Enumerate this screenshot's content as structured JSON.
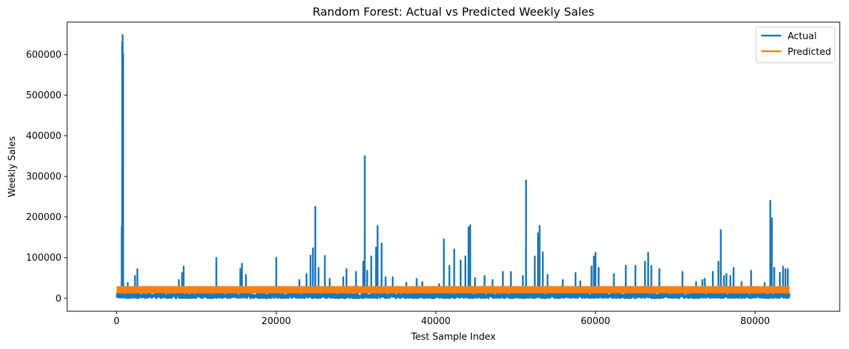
{
  "chart_data": {
    "type": "line",
    "title": "Random Forest: Actual vs Predicted Weekly Sales",
    "xlabel": "Test Sample Index",
    "ylabel": "Weekly Sales",
    "xlim": [
      -6200,
      90600
    ],
    "ylim": [
      -32000,
      680000
    ],
    "x_ticks": [
      0,
      20000,
      40000,
      60000,
      80000
    ],
    "y_ticks": [
      0,
      100000,
      200000,
      300000,
      400000,
      500000,
      600000
    ],
    "legend_position": "top-right",
    "grid": false,
    "series": [
      {
        "name": "Actual",
        "color": "#1f77b4",
        "baseline_range": [
          0,
          12000
        ],
        "x_end": 84300,
        "spikes": [
          [
            640,
            175000
          ],
          [
            700,
            630000
          ],
          [
            760,
            648000
          ],
          [
            820,
            600000
          ],
          [
            1400,
            38000
          ],
          [
            2300,
            55000
          ],
          [
            2600,
            72000
          ],
          [
            3900,
            28000
          ],
          [
            7800,
            45000
          ],
          [
            8200,
            62000
          ],
          [
            8400,
            78000
          ],
          [
            12500,
            99000
          ],
          [
            15500,
            72000
          ],
          [
            15700,
            85000
          ],
          [
            16200,
            58000
          ],
          [
            20000,
            100000
          ],
          [
            22900,
            45000
          ],
          [
            23800,
            60000
          ],
          [
            24300,
            105000
          ],
          [
            24600,
            123000
          ],
          [
            24900,
            225000
          ],
          [
            25300,
            75000
          ],
          [
            26100,
            104000
          ],
          [
            26700,
            48000
          ],
          [
            28400,
            52000
          ],
          [
            28800,
            72000
          ],
          [
            30000,
            65000
          ],
          [
            30900,
            90000
          ],
          [
            31100,
            350000
          ],
          [
            31400,
            68000
          ],
          [
            31900,
            103000
          ],
          [
            32500,
            125000
          ],
          [
            32700,
            178000
          ],
          [
            33200,
            135000
          ],
          [
            33700,
            52000
          ],
          [
            34600,
            52000
          ],
          [
            36300,
            38000
          ],
          [
            37600,
            48000
          ],
          [
            38300,
            40000
          ],
          [
            40400,
            35000
          ],
          [
            41000,
            145000
          ],
          [
            41700,
            80000
          ],
          [
            42300,
            120000
          ],
          [
            43100,
            93000
          ],
          [
            43700,
            103000
          ],
          [
            44100,
            175000
          ],
          [
            44300,
            180000
          ],
          [
            44900,
            50000
          ],
          [
            46100,
            55000
          ],
          [
            47100,
            45000
          ],
          [
            48400,
            65000
          ],
          [
            49400,
            65000
          ],
          [
            50900,
            55000
          ],
          [
            51300,
            290000
          ],
          [
            52400,
            103000
          ],
          [
            52800,
            160000
          ],
          [
            53000,
            178000
          ],
          [
            53400,
            113000
          ],
          [
            54000,
            58000
          ],
          [
            55900,
            45000
          ],
          [
            57500,
            62000
          ],
          [
            58100,
            42000
          ],
          [
            59500,
            78000
          ],
          [
            59800,
            103000
          ],
          [
            60000,
            112000
          ],
          [
            60400,
            75000
          ],
          [
            62300,
            60000
          ],
          [
            63800,
            80000
          ],
          [
            65000,
            80000
          ],
          [
            66200,
            90000
          ],
          [
            66600,
            112000
          ],
          [
            67000,
            80000
          ],
          [
            68000,
            72000
          ],
          [
            70900,
            65000
          ],
          [
            72600,
            40000
          ],
          [
            73400,
            45000
          ],
          [
            73700,
            48000
          ],
          [
            74700,
            65000
          ],
          [
            75400,
            90000
          ],
          [
            75700,
            168000
          ],
          [
            76100,
            55000
          ],
          [
            76400,
            60000
          ],
          [
            76900,
            55000
          ],
          [
            77300,
            75000
          ],
          [
            78300,
            40000
          ],
          [
            79500,
            68000
          ],
          [
            81200,
            38000
          ],
          [
            81900,
            240000
          ],
          [
            82100,
            197000
          ],
          [
            82400,
            75000
          ],
          [
            83100,
            63000
          ],
          [
            83500,
            78000
          ],
          [
            83800,
            72000
          ],
          [
            84100,
            72000
          ]
        ]
      },
      {
        "name": "Predicted",
        "color": "#ff7f0e",
        "band": [
          12000,
          30000
        ]
      }
    ]
  }
}
